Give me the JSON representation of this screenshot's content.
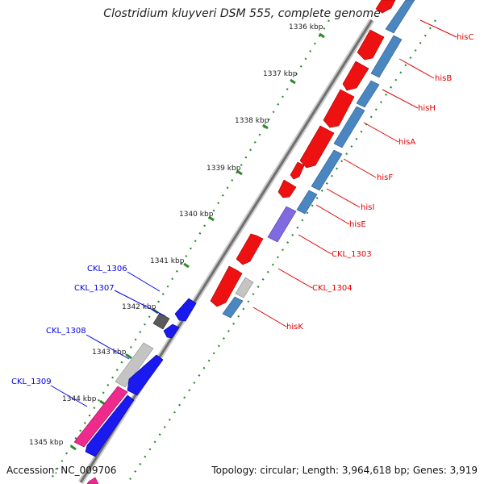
{
  "title": "Clostridium kluyveri DSM 555, complete genome",
  "accession": "Accession: NC_009706",
  "summary": "Topology: circular; Length: 3,964,618 bp; Genes: 3,919",
  "colors": {
    "backbone": "#8a8a8a",
    "tick": "#2b8a2b",
    "forward_label": "#e00000",
    "reverse_label": "#0000ee",
    "red_gene": "#ee1111",
    "blue_gene": "#4a86c0",
    "purple_gene": "#7f6adf",
    "dark_blue_gene": "#1a1af0",
    "pink_gene": "#ee2a8c",
    "gray_gene": "#c4c4c4",
    "dark_gray_gene": "#5a5a5a"
  },
  "kbp_ticks": [
    "1336 kbp",
    "1337 kbp",
    "1338 kbp",
    "1339 kbp",
    "1340 kbp",
    "1341 kbp",
    "1342 kbp",
    "1343 kbp",
    "1344 kbp",
    "1345 kbp"
  ],
  "gene_labels_right": [
    "hisC",
    "hisB",
    "hisH",
    "hisA",
    "hisF",
    "hisI",
    "hisE",
    "CKL_1303",
    "CKL_1304",
    "hisK"
  ],
  "gene_labels_left": [
    "CKL_1306",
    "CKL_1307",
    "CKL_1308",
    "CKL_1309"
  ]
}
